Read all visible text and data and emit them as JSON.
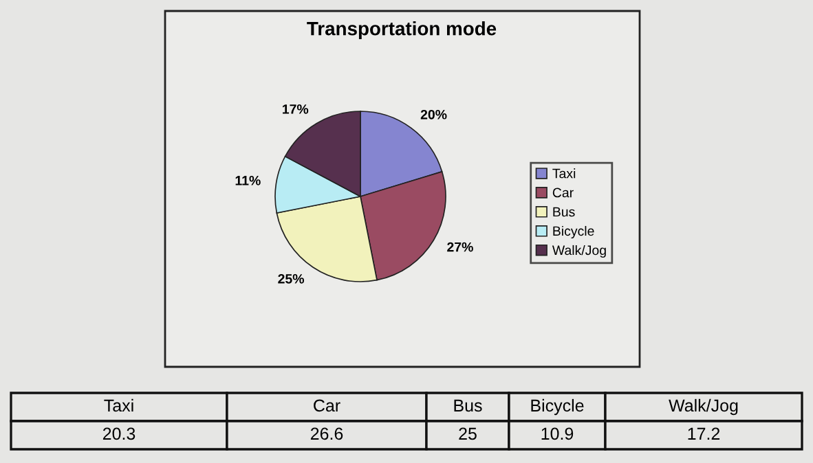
{
  "chart_data": {
    "type": "pie",
    "title": "Transportation mode",
    "categories": [
      "Taxi",
      "Car",
      "Bus",
      "Bicycle",
      "Walk/Jog"
    ],
    "values": [
      20.3,
      26.6,
      25,
      10.9,
      17.2
    ],
    "colors": [
      "#8585d0",
      "#9a4b62",
      "#f2f2bc",
      "#b8ecf4",
      "#56304e"
    ],
    "value_labels": [
      "20%",
      "27%",
      "25%",
      "11%",
      "17%"
    ],
    "annotations": [
      "20.3",
      "26.6",
      "25",
      "10.9",
      "17.2"
    ],
    "legend": "right"
  }
}
